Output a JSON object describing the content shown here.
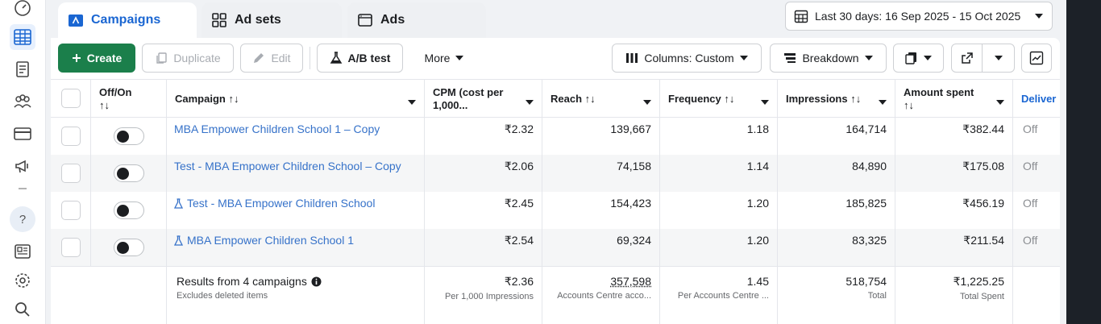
{
  "tabs": [
    {
      "label": "Campaigns"
    },
    {
      "label": "Ad sets"
    },
    {
      "label": "Ads"
    }
  ],
  "date_range": {
    "label": "Last 30 days: 16 Sep 2025 - 15 Oct 2025"
  },
  "toolbar": {
    "create": "Create",
    "duplicate": "Duplicate",
    "edit": "Edit",
    "ab_test": "A/B test",
    "more": "More",
    "columns": "Columns: Custom",
    "breakdown": "Breakdown"
  },
  "table": {
    "headers": {
      "offon": "Off/On",
      "campaign": "Campaign",
      "cpm_line1": "CPM (cost per",
      "cpm_line2": "1,000...",
      "reach": "Reach",
      "frequency": "Frequency",
      "impressions": "Impressions",
      "amount_spent": "Amount spent",
      "delivery": "Deliver",
      "sort_glyph": "↑↓"
    },
    "rows": [
      {
        "name": "MBA Empower Children School 1 – Copy",
        "cpm": "₹2.32",
        "reach": "139,667",
        "frequency": "1.18",
        "impressions": "164,714",
        "spent": "₹382.44",
        "delivery": "Off"
      },
      {
        "name": "Test - MBA Empower Children School – Copy",
        "cpm": "₹2.06",
        "reach": "74,158",
        "frequency": "1.14",
        "impressions": "84,890",
        "spent": "₹175.08",
        "delivery": "Off"
      },
      {
        "name": "Test - MBA Empower Children School",
        "cpm": "₹2.45",
        "reach": "154,423",
        "frequency": "1.20",
        "impressions": "185,825",
        "spent": "₹456.19",
        "delivery": "Off"
      },
      {
        "name": "MBA Empower Children School 1",
        "cpm": "₹2.54",
        "reach": "69,324",
        "frequency": "1.20",
        "impressions": "83,325",
        "spent": "₹211.54",
        "delivery": "Off"
      }
    ],
    "footer": {
      "results": "Results from 4 campaigns",
      "excludes": "Excludes deleted items",
      "cpm": "₹2.36",
      "cpm_sub": "Per 1,000 Impressions",
      "reach": "357,598",
      "reach_sub": "Accounts Centre acco...",
      "frequency": "1.45",
      "frequency_sub": "Per Accounts Centre ...",
      "impressions": "518,754",
      "impressions_sub": "Total",
      "spent": "₹1,225.25",
      "spent_sub": "Total Spent"
    }
  },
  "colors": {
    "accent": "#1a66d2",
    "create": "#1b7f4b",
    "link": "#3672c9"
  }
}
